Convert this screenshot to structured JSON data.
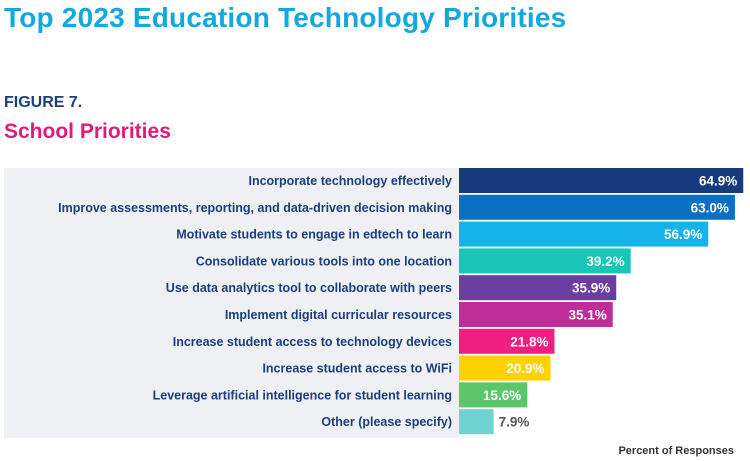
{
  "header": {
    "title": "Top 2023 Education Technology Priorities",
    "figure_label": "FIGURE 7.",
    "figure_title": "School Priorities"
  },
  "chart_data": {
    "type": "bar",
    "orientation": "horizontal",
    "xlabel": "Percent of Responses",
    "value_format": "percent",
    "categories": [
      "Incorporate technology effectively",
      "Improve assessments, reporting, and data-driven decision making",
      "Motivate students to engage in edtech to learn",
      "Consolidate various tools into one location",
      "Use data analytics tool to collaborate with peers",
      "Implement digital curricular resources",
      "Increase student access to technology devices",
      "Increase student access to WiFi",
      "Leverage artificial intelligence for student learning",
      "Other (please specify)"
    ],
    "values": [
      64.9,
      63.0,
      56.9,
      39.2,
      35.9,
      35.1,
      21.8,
      20.9,
      15.6,
      7.9
    ],
    "value_labels": [
      "64.9%",
      "63.0%",
      "56.9%",
      "39.2%",
      "35.9%",
      "35.1%",
      "21.8%",
      "20.9%",
      "15.6%",
      "7.9%"
    ],
    "colors": [
      "#173a7c",
      "#0b6fc4",
      "#16b3ea",
      "#19c5b5",
      "#6a3ea1",
      "#bf2d98",
      "#ee1f7e",
      "#ffd200",
      "#5bc66c",
      "#6ed3d2"
    ],
    "grid": false,
    "legend": "none"
  }
}
